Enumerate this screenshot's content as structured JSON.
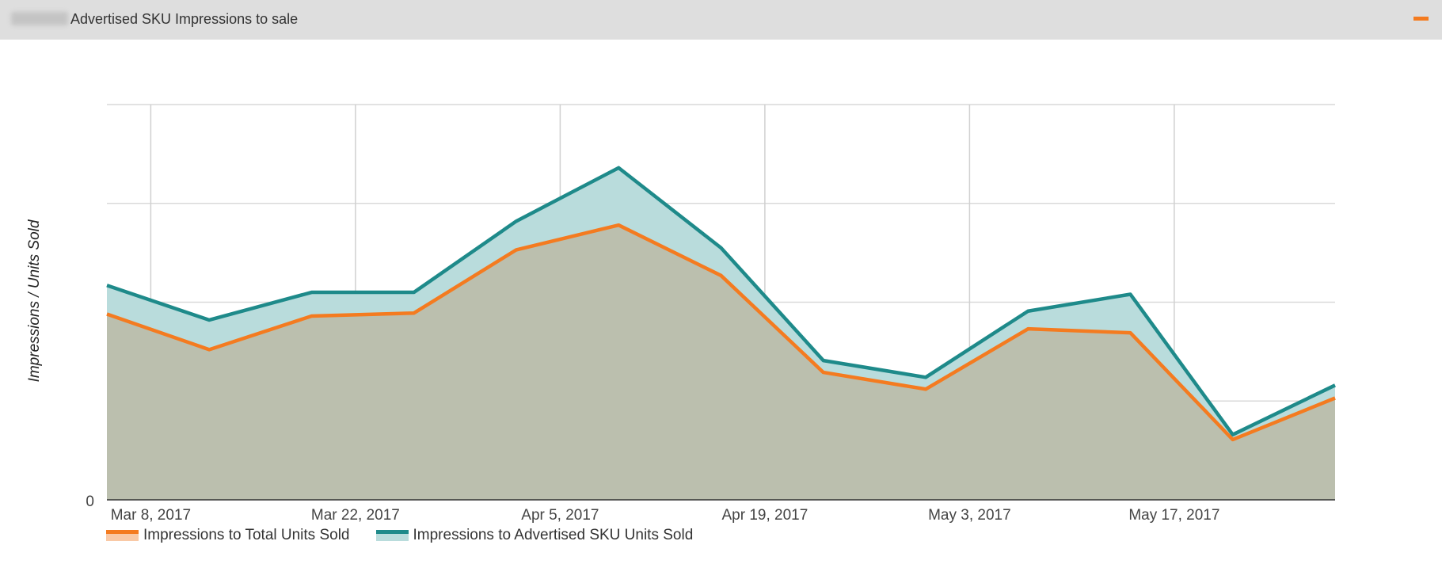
{
  "header": {
    "title": "Advertised SKU Impressions to sale",
    "collapse_icon": "minus-icon"
  },
  "colors": {
    "header_bg": "#dedede",
    "accent": "#f47b20",
    "series_total": "#f47b20",
    "series_advertised": "#1e8a8a",
    "fill_total": "#bbbfae",
    "fill_advertised": "#b9dcdc"
  },
  "chart_data": {
    "type": "area",
    "title": "",
    "xlabel": "",
    "ylabel": "Impressions / Units Sold",
    "x": [
      "Mar 5, 2017",
      "Mar 12, 2017",
      "Mar 19, 2017",
      "Mar 26, 2017",
      "Apr 2, 2017",
      "Apr 9, 2017",
      "Apr 16, 2017",
      "Apr 23, 2017",
      "Apr 30, 2017",
      "May 7, 2017",
      "May 14, 2017",
      "May 21, 2017",
      "May 28, 2017"
    ],
    "x_tick_labels": [
      "Mar 8, 2017",
      "Mar 22, 2017",
      "Apr 5, 2017",
      "Apr 19, 2017",
      "May 3, 2017",
      "May 17, 2017"
    ],
    "y_tick_labels": [
      "0"
    ],
    "y_gridlines": 4,
    "ylim": [
      0,
      4
    ],
    "grid": true,
    "legend_position": "bottom-left",
    "series": [
      {
        "name": "Impressions to Total Units Sold",
        "values": [
          1.88,
          1.52,
          1.86,
          1.89,
          2.53,
          2.78,
          2.27,
          1.29,
          1.12,
          1.73,
          1.69,
          0.61,
          1.03
        ]
      },
      {
        "name": "Impressions to Advertised SKU Units Sold",
        "values": [
          2.17,
          1.82,
          2.1,
          2.1,
          2.82,
          3.36,
          2.55,
          1.41,
          1.24,
          1.91,
          2.08,
          0.66,
          1.16
        ]
      }
    ]
  }
}
